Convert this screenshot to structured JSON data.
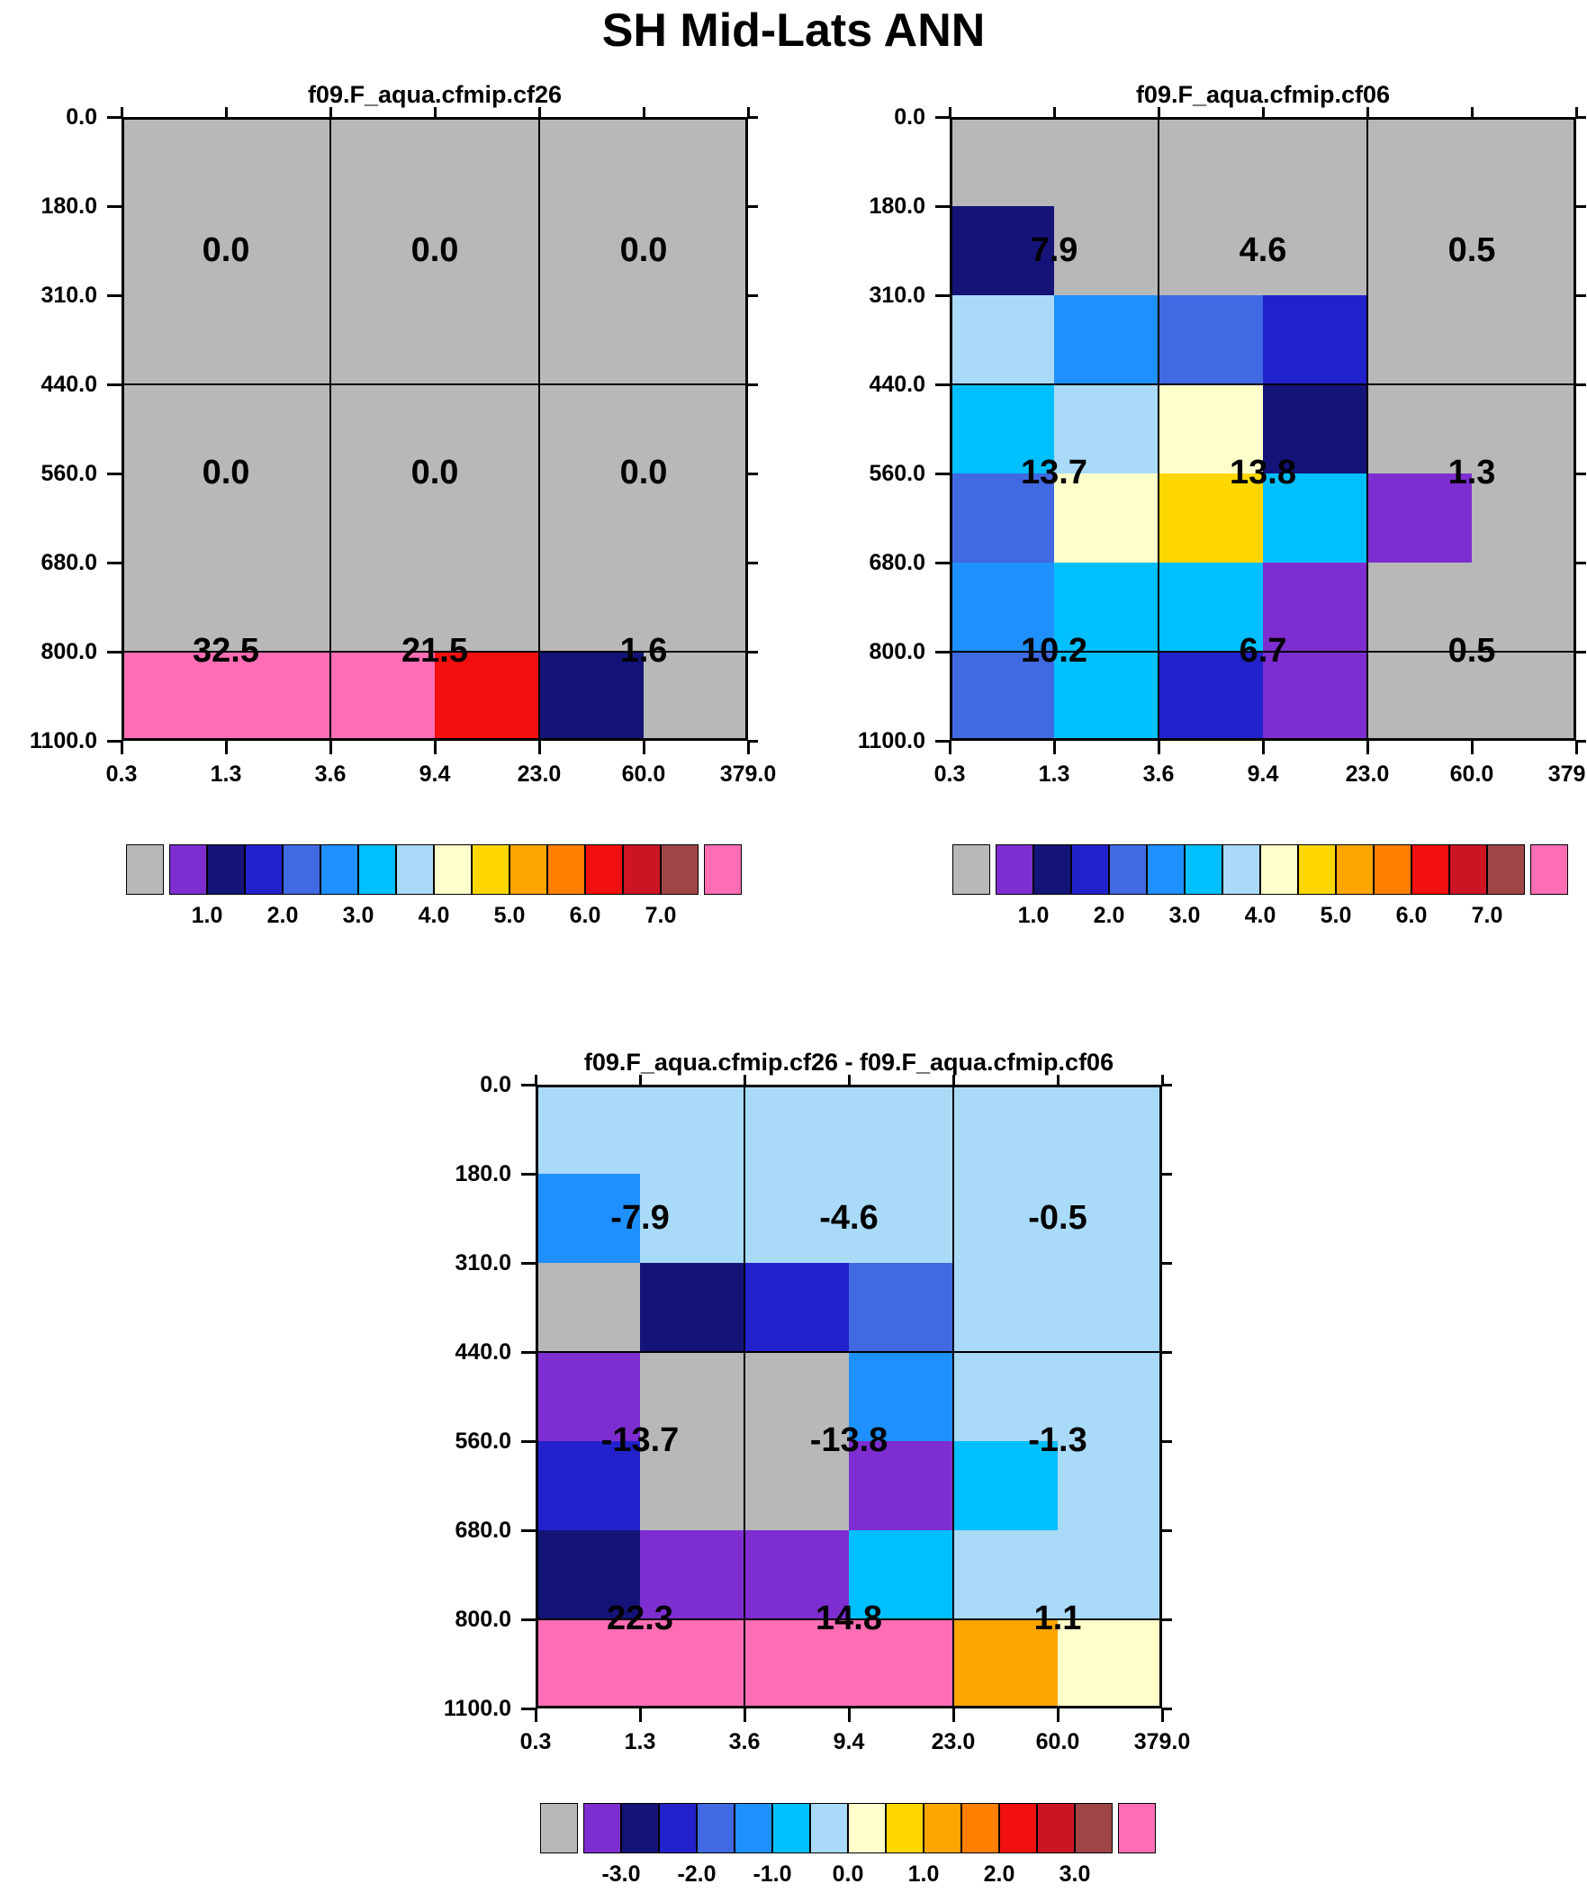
{
  "main_title": "SH Mid-Lats ANN",
  "axes": {
    "x_tick_labels": [
      "0.3",
      "1.3",
      "3.6",
      "9.4",
      "23.0",
      "60.0",
      "379.0"
    ],
    "y_tick_labels": [
      "0.0",
      "180.0",
      "310.0",
      "440.0",
      "560.0",
      "680.0",
      "800.0",
      "1100.0"
    ]
  },
  "palette": {
    "GY": "#b8b8b8",
    "PU": "#7e2ed0",
    "NV": "#141478",
    "BL": "#2222cc",
    "RY": "#4169e1",
    "DB": "#1e90ff",
    "DS": "#00bfff",
    "LB": "#a9daf8",
    "CRM": "#ffffcc",
    "GD": "#ffd700",
    "OR": "#ffa500",
    "DO": "#ff7f00",
    "RD": "#f20f0f",
    "DR": "#cd1425",
    "BR": "#a04545",
    "PK": "#ff6eb4"
  },
  "colorbar_order": [
    "GY",
    "PU",
    "NV",
    "BL",
    "RY",
    "DB",
    "DS",
    "LB",
    "CRM",
    "GD",
    "OR",
    "DO",
    "RD",
    "DR",
    "BR",
    "PK"
  ],
  "colorbars": {
    "top_labels": [
      "1.0",
      "2.0",
      "3.0",
      "4.0",
      "5.0",
      "6.0",
      "7.0"
    ],
    "diff_labels": [
      "-3.0",
      "-2.0",
      "-1.0",
      "0.0",
      "1.0",
      "2.0",
      "3.0"
    ]
  },
  "chart_data": [
    {
      "type": "heatmap",
      "title": "f09.F_aqua.cfmip.cf26",
      "x_bin_edges": [
        0.3,
        1.3,
        3.6,
        9.4,
        23.0,
        60.0,
        379.0
      ],
      "y_bin_edges_hPa": [
        0.0,
        180.0,
        310.0,
        440.0,
        560.0,
        680.0,
        800.0,
        1100.0
      ],
      "colorbar_tick_labels": [
        "1.0",
        "2.0",
        "3.0",
        "4.0",
        "5.0",
        "6.0",
        "7.0"
      ],
      "cells": [
        [
          "GY",
          "GY",
          "GY",
          "GY",
          "GY",
          "GY"
        ],
        [
          "GY",
          "GY",
          "GY",
          "GY",
          "GY",
          "GY"
        ],
        [
          "GY",
          "GY",
          "GY",
          "GY",
          "GY",
          "GY"
        ],
        [
          "GY",
          "GY",
          "GY",
          "GY",
          "GY",
          "GY"
        ],
        [
          "GY",
          "GY",
          "GY",
          "GY",
          "GY",
          "GY"
        ],
        [
          "GY",
          "GY",
          "GY",
          "GY",
          "GY",
          "GY"
        ],
        [
          "PK",
          "PK",
          "PK",
          "RD",
          "NV",
          "GY"
        ]
      ],
      "overlay_values": [
        [
          "0.0",
          "0.0",
          "0.0"
        ],
        [
          "0.0",
          "0.0",
          "0.0"
        ],
        [
          "32.5",
          "21.5",
          "1.6"
        ]
      ]
    },
    {
      "type": "heatmap",
      "title": "f09.F_aqua.cfmip.cf06",
      "x_bin_edges": [
        0.3,
        1.3,
        3.6,
        9.4,
        23.0,
        60.0,
        379.0
      ],
      "y_bin_edges_hPa": [
        0.0,
        180.0,
        310.0,
        440.0,
        560.0,
        680.0,
        800.0,
        1100.0
      ],
      "colorbar_tick_labels": [
        "1.0",
        "2.0",
        "3.0",
        "4.0",
        "5.0",
        "6.0",
        "7.0"
      ],
      "cells": [
        [
          "GY",
          "GY",
          "GY",
          "GY",
          "GY",
          "GY"
        ],
        [
          "NV",
          "GY",
          "GY",
          "GY",
          "GY",
          "GY"
        ],
        [
          "LB",
          "DB",
          "RY",
          "BL",
          "GY",
          "GY"
        ],
        [
          "DS",
          "LB",
          "CRM",
          "NV",
          "GY",
          "GY"
        ],
        [
          "RY",
          "CRM",
          "GD",
          "DS",
          "PU",
          "GY"
        ],
        [
          "DB",
          "DS",
          "DS",
          "PU",
          "GY",
          "GY"
        ],
        [
          "RY",
          "DS",
          "BL",
          "PU",
          "GY",
          "GY"
        ]
      ],
      "overlay_values": [
        [
          "7.9",
          "4.6",
          "0.5"
        ],
        [
          "13.7",
          "13.8",
          "1.3"
        ],
        [
          "10.2",
          "6.7",
          "0.5"
        ]
      ]
    },
    {
      "type": "heatmap",
      "title": "f09.F_aqua.cfmip.cf26 - f09.F_aqua.cfmip.cf06",
      "x_bin_edges": [
        0.3,
        1.3,
        3.6,
        9.4,
        23.0,
        60.0,
        379.0
      ],
      "y_bin_edges_hPa": [
        0.0,
        180.0,
        310.0,
        440.0,
        560.0,
        680.0,
        800.0,
        1100.0
      ],
      "colorbar_tick_labels": [
        "-3.0",
        "-2.0",
        "-1.0",
        "0.0",
        "1.0",
        "2.0",
        "3.0"
      ],
      "cells": [
        [
          "LB",
          "LB",
          "LB",
          "LB",
          "LB",
          "LB"
        ],
        [
          "DB",
          "LB",
          "LB",
          "LB",
          "LB",
          "LB"
        ],
        [
          "GY",
          "NV",
          "BL",
          "RY",
          "LB",
          "LB"
        ],
        [
          "PU",
          "GY",
          "GY",
          "DB",
          "LB",
          "LB"
        ],
        [
          "BL",
          "GY",
          "GY",
          "PU",
          "DS",
          "LB"
        ],
        [
          "NV",
          "PU",
          "PU",
          "DS",
          "LB",
          "LB"
        ],
        [
          "PK",
          "PK",
          "PK",
          "PK",
          "OR",
          "CRM"
        ]
      ],
      "overlay_values": [
        [
          "-7.9",
          "-4.6",
          "-0.5"
        ],
        [
          "-13.7",
          "-13.8",
          "-1.3"
        ],
        [
          "22.3",
          "14.8",
          "1.1"
        ]
      ]
    }
  ]
}
